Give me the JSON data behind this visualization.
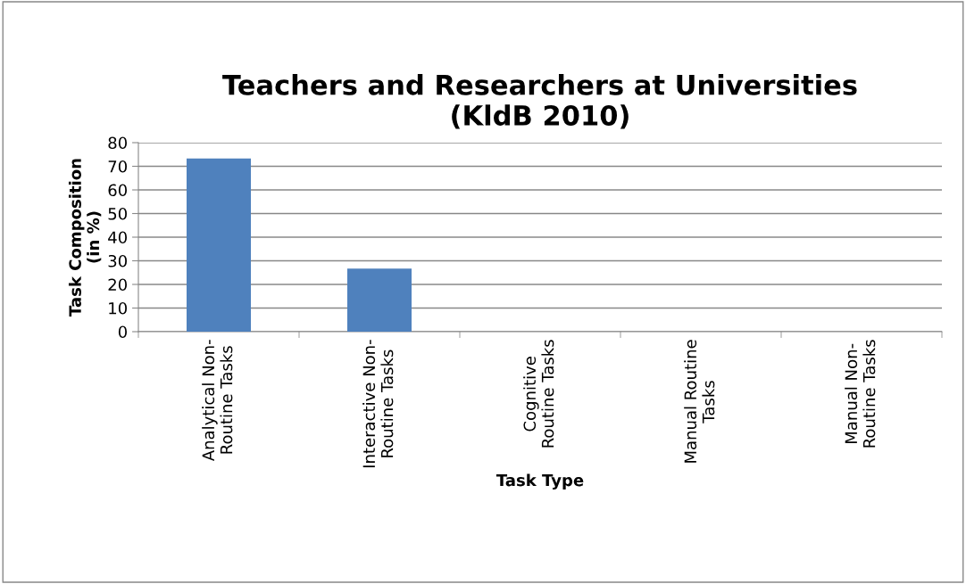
{
  "chart_data": {
    "type": "bar",
    "title": "Teachers and Researchers at Universities\n(KldB 2010)",
    "xlabel": "Task Type",
    "ylabel": "Task Composition\n(in %)",
    "categories": [
      "Analytical Non-Routine Tasks",
      "Interactive Non-Routine Tasks",
      "Cognitive Routine Tasks",
      "Manual Routine Tasks",
      "Manual Non-Routine Tasks"
    ],
    "values": [
      73.3,
      26.7,
      0,
      0,
      0
    ],
    "color": "#4f81bd",
    "ylim": [
      0,
      80
    ],
    "yticks": [
      0,
      10,
      20,
      30,
      40,
      50,
      60,
      70,
      80
    ],
    "grid": "y",
    "legend": false
  }
}
